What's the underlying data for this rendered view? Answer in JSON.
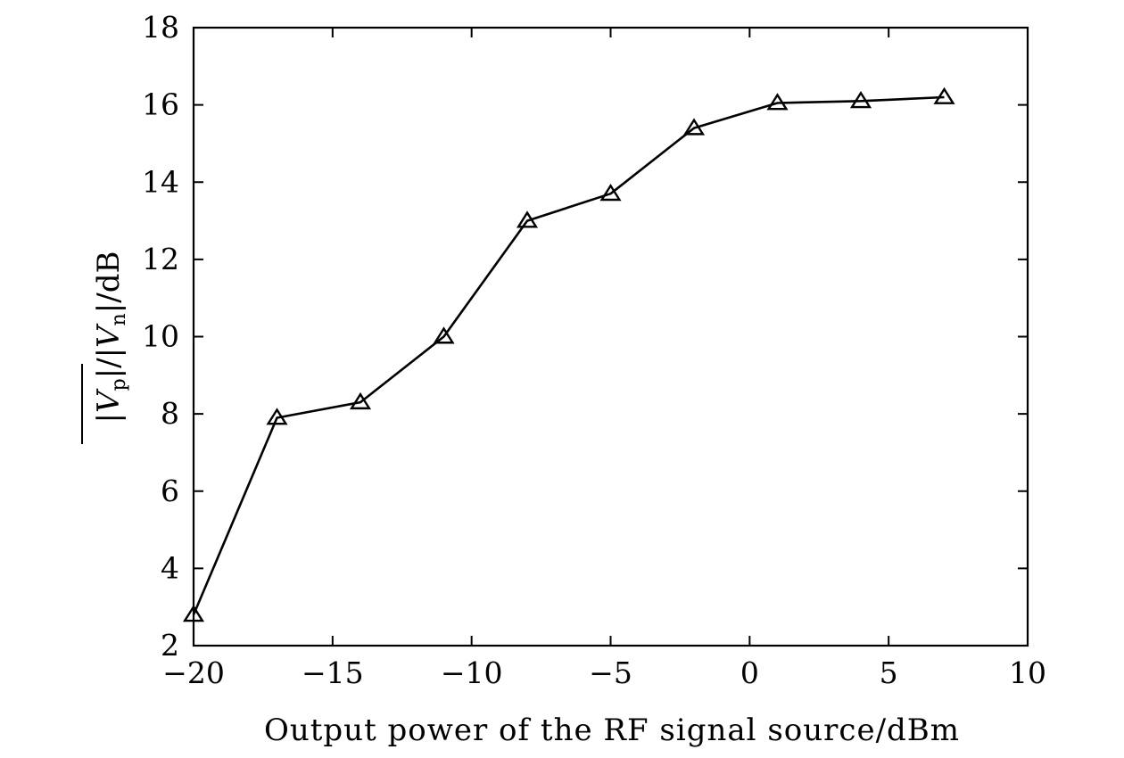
{
  "chart_data": {
    "type": "line",
    "title": "",
    "xlabel": "Output power of the RF signal source/dBm",
    "ylabel": "|Vp|/|Vn|/dB",
    "ylabel_parts": {
      "bar_open": "|",
      "v1": "V",
      "sub1": "p",
      "bar_close": "|",
      "sep": "/|",
      "v2": "V",
      "sub2": "n",
      "unit": "|/dB"
    },
    "xlim": [
      -20,
      10
    ],
    "ylim": [
      2,
      18
    ],
    "xticks": [
      -20,
      -15,
      -10,
      -5,
      0,
      5,
      10
    ],
    "yticks": [
      2,
      4,
      6,
      8,
      10,
      12,
      14,
      16,
      18
    ],
    "xtick_labels": [
      "−20",
      "−15",
      "−10",
      "−5",
      "0",
      "5",
      "10"
    ],
    "ytick_labels": [
      "2",
      "4",
      "6",
      "8",
      "10",
      "12",
      "14",
      "16",
      "18"
    ],
    "grid": false,
    "legend": "none",
    "marker": "triangle-open",
    "line_color": "#000000",
    "series": [
      {
        "x": [
          -20,
          -17,
          -14,
          -11,
          -8,
          -5,
          -2,
          1,
          4,
          7
        ],
        "values": [
          2.8,
          7.9,
          8.3,
          10.0,
          13.0,
          13.7,
          15.4,
          16.05,
          16.1,
          16.2
        ]
      }
    ]
  }
}
